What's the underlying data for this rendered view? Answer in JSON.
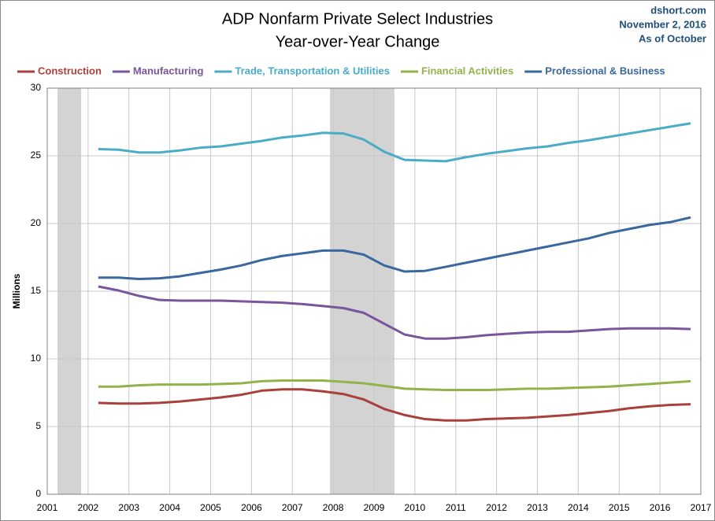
{
  "chart_data": {
    "type": "line",
    "title": "ADP Nonfarm Private Select Industries",
    "subtitle": "Year-over-Year Change",
    "annotations": [
      "dshort.com",
      "November 2, 2016",
      "As of October"
    ],
    "ylabel": "Millions",
    "xlim": [
      2001,
      2017
    ],
    "ylim": [
      0,
      30
    ],
    "xticks": [
      2001,
      2002,
      2003,
      2004,
      2005,
      2006,
      2007,
      2008,
      2009,
      2010,
      2011,
      2012,
      2013,
      2014,
      2015,
      2016,
      2017
    ],
    "yticks": [
      0,
      5,
      10,
      15,
      20,
      25,
      30
    ],
    "grid": true,
    "legend": "top",
    "recessions": [
      [
        2001.25,
        2001.83
      ],
      [
        2007.92,
        2009.5
      ]
    ],
    "recession_color": "#d3d3d3",
    "x": [
      2002.25,
      2002.75,
      2003.25,
      2003.75,
      2004.25,
      2004.75,
      2005.25,
      2005.75,
      2006.25,
      2006.75,
      2007.25,
      2007.75,
      2008.25,
      2008.75,
      2009.25,
      2009.75,
      2010.25,
      2010.75,
      2011.25,
      2011.75,
      2012.25,
      2012.75,
      2013.25,
      2013.75,
      2014.25,
      2014.75,
      2015.25,
      2015.75,
      2016.25,
      2016.75
    ],
    "series": [
      {
        "name": "Construction",
        "color": "#a8403c",
        "values": [
          6.75,
          6.7,
          6.7,
          6.75,
          6.85,
          7.0,
          7.15,
          7.35,
          7.65,
          7.75,
          7.75,
          7.6,
          7.4,
          7.0,
          6.3,
          5.85,
          5.55,
          5.45,
          5.45,
          5.55,
          5.6,
          5.65,
          5.75,
          5.85,
          6.0,
          6.15,
          6.35,
          6.5,
          6.6,
          6.65
        ]
      },
      {
        "name": "Manufacturing",
        "color": "#7a559c",
        "values": [
          15.35,
          15.05,
          14.65,
          14.35,
          14.3,
          14.3,
          14.3,
          14.25,
          14.2,
          14.15,
          14.05,
          13.9,
          13.75,
          13.4,
          12.6,
          11.8,
          11.5,
          11.5,
          11.6,
          11.75,
          11.85,
          11.95,
          12.0,
          12.0,
          12.1,
          12.2,
          12.25,
          12.25,
          12.25,
          12.2
        ]
      },
      {
        "name": "Trade, Transportation & Utilities",
        "color": "#4bacc6",
        "values": [
          25.5,
          25.45,
          25.25,
          25.25,
          25.4,
          25.6,
          25.7,
          25.9,
          26.1,
          26.35,
          26.5,
          26.7,
          26.65,
          26.2,
          25.3,
          24.7,
          24.65,
          24.6,
          24.9,
          25.15,
          25.35,
          25.55,
          25.7,
          25.95,
          26.15,
          26.4,
          26.65,
          26.9,
          27.15,
          27.4
        ]
      },
      {
        "name": "Financial Activities",
        "color": "#93b24b",
        "values": [
          7.95,
          7.95,
          8.05,
          8.1,
          8.1,
          8.1,
          8.15,
          8.2,
          8.35,
          8.4,
          8.4,
          8.4,
          8.3,
          8.2,
          8.0,
          7.8,
          7.75,
          7.7,
          7.7,
          7.7,
          7.75,
          7.8,
          7.8,
          7.85,
          7.9,
          7.95,
          8.05,
          8.15,
          8.25,
          8.35
        ]
      },
      {
        "name": "Professional & Business",
        "color": "#3a679e",
        "values": [
          16.0,
          16.0,
          15.9,
          15.95,
          16.1,
          16.35,
          16.6,
          16.9,
          17.3,
          17.6,
          17.8,
          18.0,
          18.0,
          17.7,
          16.9,
          16.45,
          16.5,
          16.8,
          17.1,
          17.4,
          17.7,
          18.0,
          18.3,
          18.6,
          18.9,
          19.3,
          19.6,
          19.9,
          20.1,
          20.45
        ]
      }
    ]
  }
}
